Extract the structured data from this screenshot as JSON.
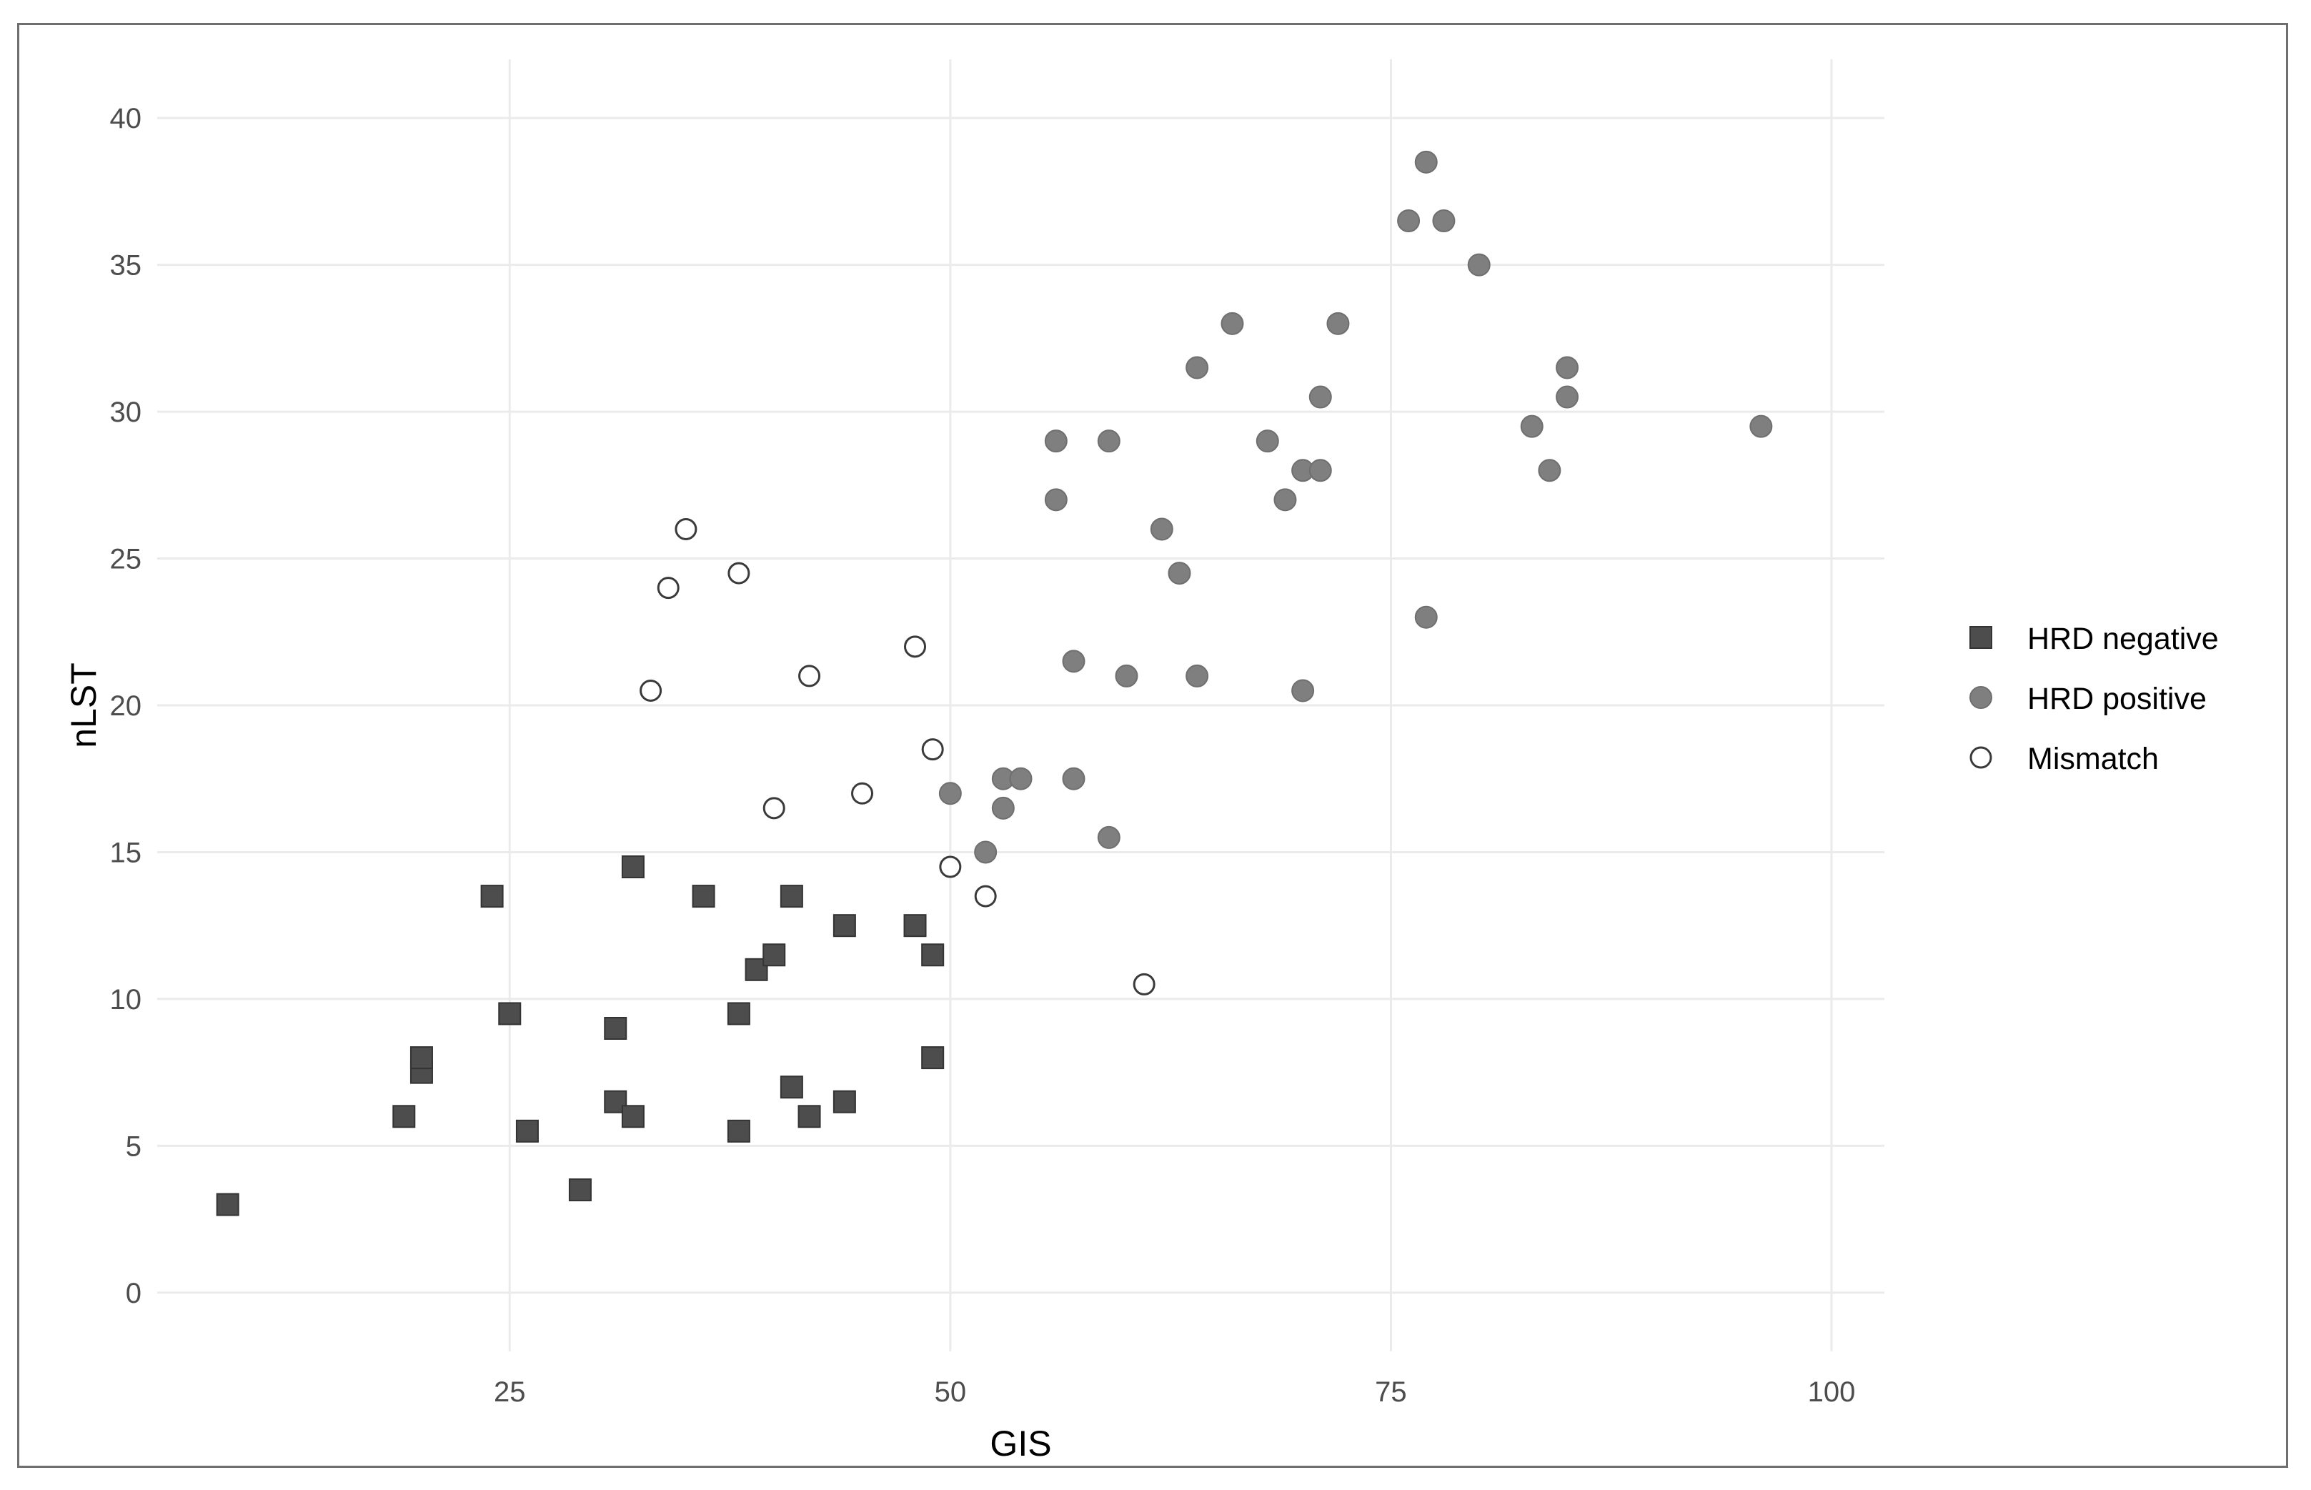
{
  "chart_data": {
    "type": "scatter",
    "title": "",
    "xlabel": "GIS",
    "ylabel": "nLST",
    "xlim": [
      5,
      103
    ],
    "ylim": [
      -2,
      42
    ],
    "xticks": [
      25,
      50,
      75,
      100
    ],
    "yticks": [
      0,
      5,
      10,
      15,
      20,
      25,
      30,
      35,
      40
    ],
    "grid": true,
    "legend_position": "right",
    "colors": {
      "HRD negative": "#4d4d4d",
      "HRD positive": "#7f7f7f",
      "Mismatch": "#ffffff"
    },
    "series": [
      {
        "name": "HRD negative",
        "marker": "square",
        "points": [
          [
            9,
            3
          ],
          [
            19,
            6
          ],
          [
            20,
            7.5
          ],
          [
            20,
            8
          ],
          [
            24,
            13.5
          ],
          [
            25,
            9.5
          ],
          [
            26,
            5.5
          ],
          [
            29,
            3.5
          ],
          [
            31,
            9
          ],
          [
            31,
            6.5
          ],
          [
            32,
            6
          ],
          [
            32,
            14.5
          ],
          [
            36,
            13.5
          ],
          [
            38,
            9.5
          ],
          [
            38,
            5.5
          ],
          [
            39,
            11
          ],
          [
            40,
            11.5
          ],
          [
            41,
            13.5
          ],
          [
            41,
            7
          ],
          [
            42,
            6
          ],
          [
            44,
            12.5
          ],
          [
            44,
            6.5
          ],
          [
            48,
            12.5
          ],
          [
            49,
            11.5
          ],
          [
            49,
            8
          ]
        ]
      },
      {
        "name": "HRD positive",
        "marker": "circle",
        "points": [
          [
            50,
            17
          ],
          [
            52,
            15
          ],
          [
            53,
            16.5
          ],
          [
            53,
            17.5
          ],
          [
            54,
            17.5
          ],
          [
            56,
            29
          ],
          [
            56,
            27
          ],
          [
            57,
            21.5
          ],
          [
            57,
            17.5
          ],
          [
            59,
            29
          ],
          [
            59,
            15.5
          ],
          [
            60,
            21
          ],
          [
            62,
            26
          ],
          [
            63,
            24.5
          ],
          [
            64,
            31.5
          ],
          [
            64,
            21
          ],
          [
            66,
            33
          ],
          [
            68,
            29
          ],
          [
            69,
            27
          ],
          [
            70,
            28
          ],
          [
            70,
            20.5
          ],
          [
            71,
            30.5
          ],
          [
            71,
            28
          ],
          [
            72,
            33
          ],
          [
            76,
            36.5
          ],
          [
            77,
            38.5
          ],
          [
            77,
            23
          ],
          [
            78,
            36.5
          ],
          [
            80,
            35
          ],
          [
            83,
            29.5
          ],
          [
            84,
            28
          ],
          [
            85,
            31.5
          ],
          [
            85,
            30.5
          ],
          [
            96,
            29.5
          ]
        ]
      },
      {
        "name": "Mismatch",
        "marker": "open-circle",
        "points": [
          [
            33,
            20.5
          ],
          [
            34,
            24
          ],
          [
            35,
            26
          ],
          [
            38,
            24.5
          ],
          [
            40,
            16.5
          ],
          [
            42,
            21
          ],
          [
            45,
            17
          ],
          [
            48,
            22
          ],
          [
            49,
            18.5
          ],
          [
            50,
            14.5
          ],
          [
            52,
            13.5
          ],
          [
            61,
            10.5
          ]
        ]
      }
    ]
  }
}
